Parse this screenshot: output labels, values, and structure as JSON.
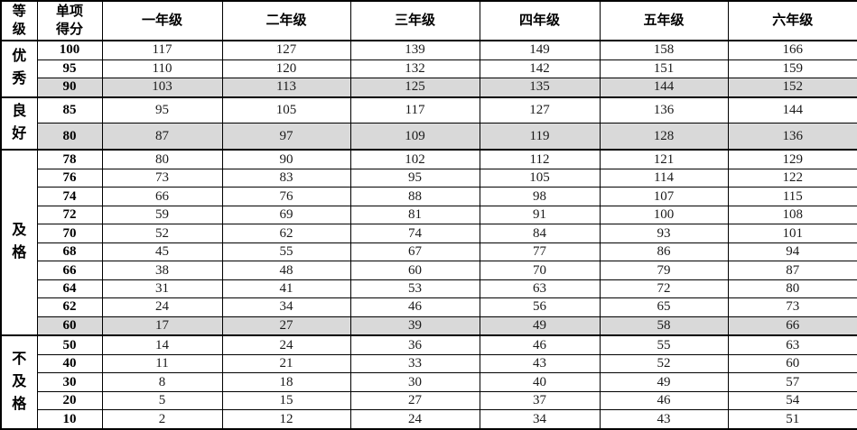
{
  "table": {
    "columns": [
      "等\n级",
      "单项\n得分",
      "一年级",
      "二年级",
      "三年级",
      "四年级",
      "五年级",
      "六年级"
    ],
    "highlight_color": "#d9d9d9",
    "border_color": "#000000",
    "groups": [
      {
        "label": "优秀",
        "label_display": "优\n秀",
        "rows": [
          {
            "score": "100",
            "values": [
              117,
              127,
              139,
              149,
              158,
              166
            ],
            "highlight": false
          },
          {
            "score": "95",
            "values": [
              110,
              120,
              132,
              142,
              151,
              159
            ],
            "highlight": false
          },
          {
            "score": "90",
            "values": [
              103,
              113,
              125,
              135,
              144,
              152
            ],
            "highlight": true
          }
        ]
      },
      {
        "label": "良好",
        "label_display": "良\n好",
        "rows": [
          {
            "score": "85",
            "values": [
              95,
              105,
              117,
              127,
              136,
              144
            ],
            "highlight": false
          },
          {
            "score": "80",
            "values": [
              87,
              97,
              109,
              119,
              128,
              136
            ],
            "highlight": true
          }
        ]
      },
      {
        "label": "及格",
        "label_display": "及\n格",
        "rows": [
          {
            "score": "78",
            "values": [
              80,
              90,
              102,
              112,
              121,
              129
            ],
            "highlight": false
          },
          {
            "score": "76",
            "values": [
              73,
              83,
              95,
              105,
              114,
              122
            ],
            "highlight": false
          },
          {
            "score": "74",
            "values": [
              66,
              76,
              88,
              98,
              107,
              115
            ],
            "highlight": false
          },
          {
            "score": "72",
            "values": [
              59,
              69,
              81,
              91,
              100,
              108
            ],
            "highlight": false
          },
          {
            "score": "70",
            "values": [
              52,
              62,
              74,
              84,
              93,
              101
            ],
            "highlight": false
          },
          {
            "score": "68",
            "values": [
              45,
              55,
              67,
              77,
              86,
              94
            ],
            "highlight": false
          },
          {
            "score": "66",
            "values": [
              38,
              48,
              60,
              70,
              79,
              87
            ],
            "highlight": false
          },
          {
            "score": "64",
            "values": [
              31,
              41,
              53,
              63,
              72,
              80
            ],
            "highlight": false
          },
          {
            "score": "62",
            "values": [
              24,
              34,
              46,
              56,
              65,
              73
            ],
            "highlight": false
          },
          {
            "score": "60",
            "values": [
              17,
              27,
              39,
              49,
              58,
              66
            ],
            "highlight": true
          }
        ]
      },
      {
        "label": "不及格",
        "label_display": "不\n及\n格",
        "rows": [
          {
            "score": "50",
            "values": [
              14,
              24,
              36,
              46,
              55,
              63
            ],
            "highlight": false
          },
          {
            "score": "40",
            "values": [
              11,
              21,
              33,
              43,
              52,
              60
            ],
            "highlight": false
          },
          {
            "score": "30",
            "values": [
              8,
              18,
              30,
              40,
              49,
              57
            ],
            "highlight": false
          },
          {
            "score": "20",
            "values": [
              5,
              15,
              27,
              37,
              46,
              54
            ],
            "highlight": false
          },
          {
            "score": "10",
            "values": [
              2,
              12,
              24,
              34,
              43,
              51
            ],
            "highlight": false
          }
        ]
      }
    ]
  }
}
